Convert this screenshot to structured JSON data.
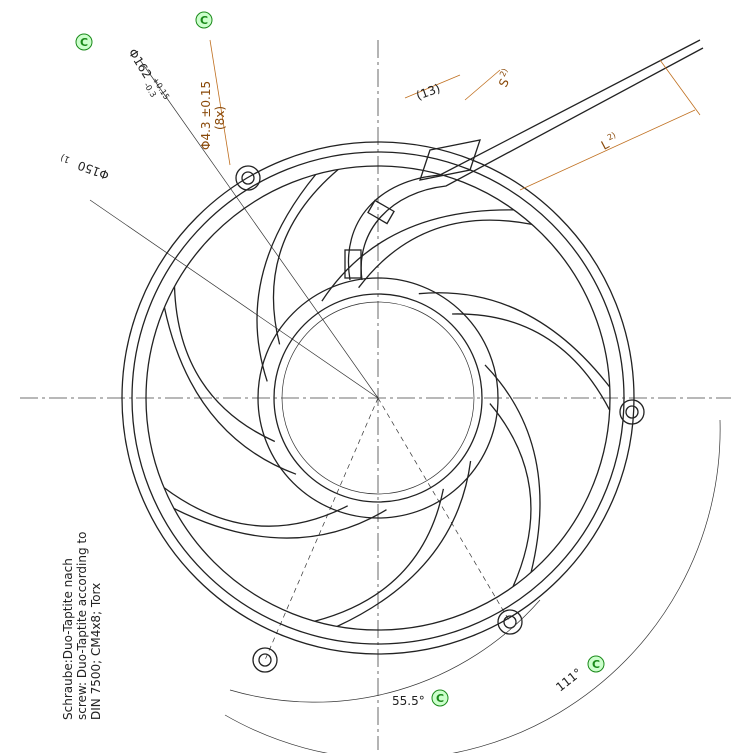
{
  "dimensions": {
    "outer_diameter": "Φ162",
    "outer_tol_upper": "+0.15",
    "outer_tol_lower": "-0.3",
    "hole": "Φ4.3 ±0.15",
    "hole_count": "(8x)",
    "inner_diameter": "Φ150",
    "inner_note": "1)",
    "cable_offset": "(13)",
    "s_label": "S",
    "s_note": "2)",
    "l_label": "L",
    "l_note": "2)",
    "angle_small": "55.5°",
    "angle_large": "111°"
  },
  "markers": [
    "C",
    "C",
    "C",
    "C"
  ],
  "note": [
    "Schraube:Duo-Taptite nach",
    "screw: Duo-Taptite according to",
    "DIN 7500; CM4x8; Torx"
  ]
}
